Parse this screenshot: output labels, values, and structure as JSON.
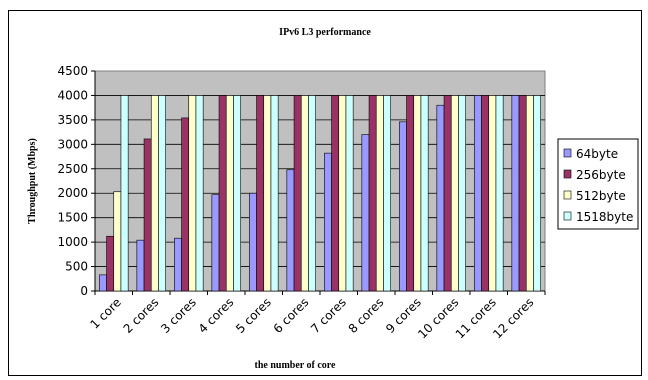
{
  "chart_data": {
    "type": "bar",
    "title": "IPv6 L3 performance",
    "xlabel": "the number of core",
    "ylabel": "Throughput (Mbps)",
    "ylim": [
      0,
      4500
    ],
    "yticks": [
      0,
      500,
      1000,
      1500,
      2000,
      2500,
      3000,
      3500,
      4000,
      4500
    ],
    "grid": true,
    "legend_position": "right",
    "categories": [
      "1 core",
      "2 cores",
      "3 cores",
      "4 cores",
      "5 cores",
      "6 cores",
      "7 cores",
      "8 cores",
      "9 cores",
      "10 cores",
      "11 cores",
      "12 cores"
    ],
    "series": [
      {
        "name": "64byte",
        "color": "#9999ff",
        "values": [
          330,
          1040,
          1080,
          1970,
          2000,
          2480,
          2820,
          3200,
          3460,
          3800,
          4000,
          4000
        ]
      },
      {
        "name": "256byte",
        "color": "#993366",
        "values": [
          1120,
          3110,
          3540,
          4000,
          4000,
          4000,
          4000,
          4000,
          4000,
          4000,
          4000,
          4000
        ]
      },
      {
        "name": "512byte",
        "color": "#ffffcc",
        "values": [
          2030,
          4000,
          4000,
          4000,
          4000,
          4000,
          4000,
          4000,
          4000,
          4000,
          4000,
          4000
        ]
      },
      {
        "name": "1518byte",
        "color": "#ccffff",
        "values": [
          4000,
          4000,
          4000,
          4000,
          4000,
          4000,
          4000,
          4000,
          4000,
          4000,
          4000,
          4000
        ]
      }
    ],
    "plot_background": "#c0c0c0"
  }
}
